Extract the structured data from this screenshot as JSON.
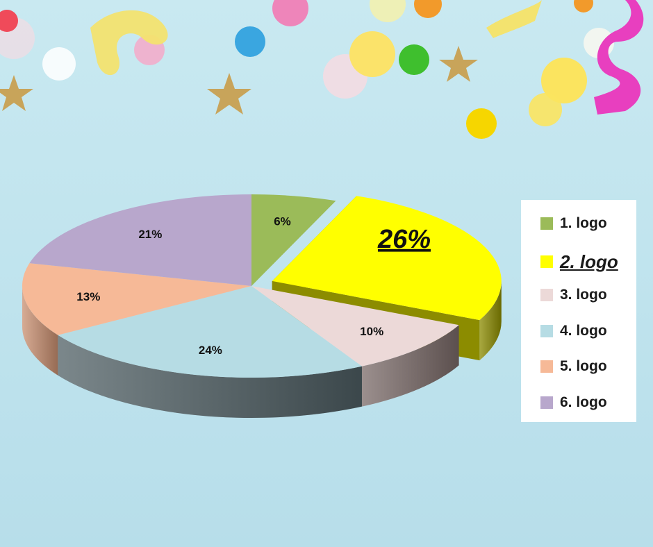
{
  "chart_data": {
    "type": "pie",
    "style": "3d-exploded",
    "categories": [
      "1. logo",
      "2. logo",
      "3. logo",
      "4. logo",
      "5. logo",
      "6. logo"
    ],
    "values": [
      6,
      26,
      10,
      24,
      13,
      21
    ],
    "data_labels": [
      "6%",
      "26%",
      "10%",
      "24%",
      "13%",
      "21%"
    ],
    "colors": [
      "#9bbb59",
      "#ffff00",
      "#ecd9d8",
      "#b6dce4",
      "#f6b997",
      "#b8a7cc"
    ],
    "side_colors": [
      "#6d8a35",
      "#8c8c00",
      "#7a6a68",
      "#4f5f64",
      "#c98f70",
      "#8d7ba6"
    ],
    "highlighted_index": 1,
    "legend_position": "right",
    "title": "",
    "background": "party confetti"
  },
  "legend": {
    "items": [
      {
        "label": "1. logo",
        "color": "#9bbb59"
      },
      {
        "label": "2. logo",
        "color": "#ffff00"
      },
      {
        "label": "3. logo",
        "color": "#ecd9d8"
      },
      {
        "label": "4. logo",
        "color": "#b6dce4"
      },
      {
        "label": "5. logo",
        "color": "#f6b997"
      },
      {
        "label": "6. logo",
        "color": "#b8a7cc"
      }
    ]
  },
  "decorations": {
    "icons": [
      "confetti-dots",
      "star-icon",
      "streamer-ribbon",
      "candy-ball"
    ]
  }
}
